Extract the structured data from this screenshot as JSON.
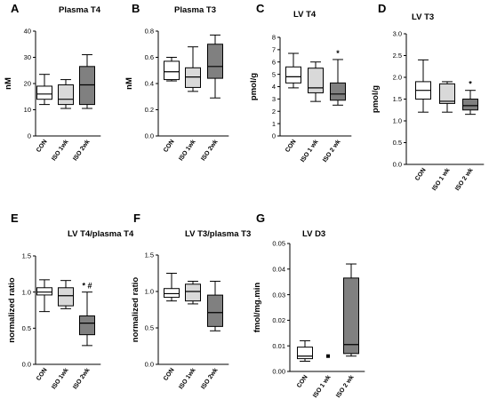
{
  "chart_data": [
    {
      "type": "box",
      "letter": "A",
      "title": "Plasma T4",
      "ylabel": "nM",
      "ylim": [
        0,
        40
      ],
      "yticks": [
        0,
        10,
        20,
        30,
        40
      ],
      "categories": [
        "CON",
        "ISO 1wk",
        "ISO 2wk"
      ],
      "boxes": [
        {
          "min": 12,
          "q1": 14,
          "median": 16,
          "q3": 19,
          "max": 23.5,
          "fill": "#ffffff"
        },
        {
          "min": 10.5,
          "q1": 12,
          "median": 14,
          "q3": 19.5,
          "max": 21.5,
          "fill": "#d9d9d9"
        },
        {
          "min": 10.5,
          "q1": 12,
          "median": 19.5,
          "q3": 26.5,
          "max": 31,
          "fill": "#808080"
        }
      ],
      "annotations": []
    },
    {
      "type": "box",
      "letter": "B",
      "title": "Plasma T3",
      "ylabel": "nM",
      "ylim": [
        0,
        0.8
      ],
      "yticks": [
        "0.0",
        "0.2",
        "0.4",
        "0.6",
        "0.8"
      ],
      "yticks_num": [
        0,
        0.2,
        0.4,
        0.6,
        0.8
      ],
      "categories": [
        "CON",
        "ISO 1wk",
        "ISO 2wk"
      ],
      "boxes": [
        {
          "min": 0.42,
          "q1": 0.43,
          "median": 0.49,
          "q3": 0.57,
          "max": 0.6,
          "fill": "#ffffff"
        },
        {
          "min": 0.34,
          "q1": 0.37,
          "median": 0.45,
          "q3": 0.52,
          "max": 0.68,
          "fill": "#d9d9d9"
        },
        {
          "min": 0.29,
          "q1": 0.44,
          "median": 0.53,
          "q3": 0.7,
          "max": 0.77,
          "fill": "#808080"
        }
      ],
      "annotations": []
    },
    {
      "type": "box",
      "letter": "C",
      "title": "LV T4",
      "ylabel": "pmol/g",
      "ylim": [
        0,
        8
      ],
      "yticks": [
        0,
        1,
        2,
        3,
        4,
        5,
        6,
        7,
        8
      ],
      "categories": [
        "CON",
        "ISO 1 wk",
        "ISO 2 wk"
      ],
      "boxes": [
        {
          "min": 3.9,
          "q1": 4.3,
          "median": 4.8,
          "q3": 5.6,
          "max": 6.7,
          "fill": "#ffffff"
        },
        {
          "min": 2.8,
          "q1": 3.5,
          "median": 3.9,
          "q3": 5.5,
          "max": 6.0,
          "fill": "#d9d9d9"
        },
        {
          "min": 2.5,
          "q1": 2.9,
          "median": 3.4,
          "q3": 4.3,
          "max": 6.2,
          "fill": "#808080"
        }
      ],
      "annotations": [
        {
          "box": 2,
          "text": "*"
        }
      ]
    },
    {
      "type": "box",
      "letter": "D",
      "title": "LV T3",
      "ylabel": "pmol/g",
      "ylim": [
        0,
        3
      ],
      "yticks": [
        "0.0",
        "0.5",
        "1.0",
        "1.5",
        "2.0",
        "2.5",
        "3.0"
      ],
      "yticks_num": [
        0,
        0.5,
        1,
        1.5,
        2,
        2.5,
        3
      ],
      "categories": [
        "CON",
        "ISO 1 wk",
        "ISO 2 wk"
      ],
      "boxes": [
        {
          "min": 1.2,
          "q1": 1.5,
          "median": 1.7,
          "q3": 1.9,
          "max": 2.4,
          "fill": "#ffffff"
        },
        {
          "min": 1.2,
          "q1": 1.4,
          "median": 1.45,
          "q3": 1.85,
          "max": 1.9,
          "fill": "#d9d9d9"
        },
        {
          "min": 1.15,
          "q1": 1.25,
          "median": 1.35,
          "q3": 1.5,
          "max": 1.7,
          "fill": "#808080"
        }
      ],
      "annotations": [
        {
          "box": 2,
          "text": "*"
        }
      ]
    },
    {
      "type": "box",
      "letter": "E",
      "title": "LV T4/plasma T4",
      "ylabel": "normalized ratio",
      "ylim": [
        0,
        1.5
      ],
      "yticks": [
        "0.0",
        "0.5",
        "1.0",
        "1.5"
      ],
      "yticks_num": [
        0,
        0.5,
        1,
        1.5
      ],
      "categories": [
        "CON",
        "ISO 1wk",
        "ISO 2wk"
      ],
      "boxes": [
        {
          "min": 0.73,
          "q1": 0.96,
          "median": 1.0,
          "q3": 1.06,
          "max": 1.17,
          "fill": "#ffffff"
        },
        {
          "min": 0.77,
          "q1": 0.81,
          "median": 0.95,
          "q3": 1.06,
          "max": 1.16,
          "fill": "#d9d9d9"
        },
        {
          "min": 0.26,
          "q1": 0.41,
          "median": 0.57,
          "q3": 0.67,
          "max": 1.0,
          "fill": "#808080"
        }
      ],
      "annotations": [
        {
          "box": 2,
          "text": "* #"
        }
      ]
    },
    {
      "type": "box",
      "letter": "F",
      "title": "LV T3/plasma T3",
      "ylabel": "normalized ratio",
      "ylim": [
        0,
        1.5
      ],
      "yticks": [
        "0.0",
        "0.5",
        "1.0",
        "1.5"
      ],
      "yticks_num": [
        0,
        0.5,
        1,
        1.5
      ],
      "categories": [
        "CON",
        "ISO 1wk",
        "ISO 2wk"
      ],
      "boxes": [
        {
          "min": 0.87,
          "q1": 0.92,
          "median": 0.97,
          "q3": 1.04,
          "max": 1.25,
          "fill": "#ffffff"
        },
        {
          "min": 0.83,
          "q1": 0.87,
          "median": 1.0,
          "q3": 1.1,
          "max": 1.14,
          "fill": "#d9d9d9"
        },
        {
          "min": 0.46,
          "q1": 0.52,
          "median": 0.71,
          "q3": 0.95,
          "max": 1.14,
          "fill": "#808080"
        }
      ],
      "annotations": []
    },
    {
      "type": "box",
      "letter": "G",
      "title": "LV D3",
      "ylabel": "fmol/mg.min",
      "ylim": [
        0,
        0.05
      ],
      "yticks": [
        "0.00",
        "0.01",
        "0.02",
        "0.03",
        "0.04",
        "0.05"
      ],
      "yticks_num": [
        0,
        0.01,
        0.02,
        0.03,
        0.04,
        0.05
      ],
      "categories": [
        "CON",
        "ISO 1 wk",
        "ISO 2 wk"
      ],
      "boxes": [
        {
          "min": 0.004,
          "q1": 0.005,
          "median": 0.006,
          "q3": 0.0095,
          "max": 0.012,
          "fill": "#ffffff"
        },
        {
          "point": 0.006,
          "fill": "#000000"
        },
        {
          "min": 0.006,
          "q1": 0.007,
          "median": 0.0105,
          "q3": 0.0365,
          "max": 0.042,
          "fill": "#808080"
        }
      ],
      "annotations": []
    }
  ]
}
